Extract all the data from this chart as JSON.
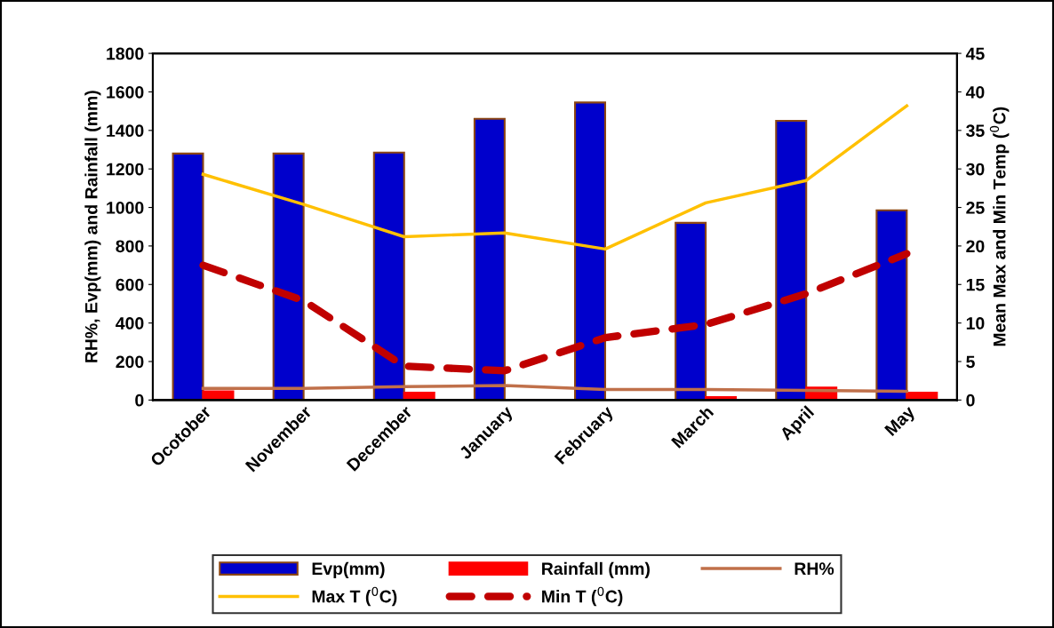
{
  "chart_data": {
    "type": "bar",
    "categories": [
      "Ocotober",
      "November",
      "December",
      "January",
      "February",
      "March",
      "April",
      "May"
    ],
    "ylabel": "RH%, Evp(mm) and Rainfall (mm)",
    "y2label": "Mean Max and Min Temp ($^{0}$C)",
    "ylim": [
      0,
      1800
    ],
    "yticks": [
      0,
      200,
      400,
      600,
      800,
      1000,
      1200,
      1400,
      1600,
      1800
    ],
    "y2lim": [
      0,
      45
    ],
    "y2ticks": [
      0,
      5,
      10,
      15,
      20,
      25,
      30,
      35,
      40,
      45
    ],
    "grid": false,
    "legend": "bottom",
    "series": [
      {
        "name": "Evp(mm)",
        "color": "#0000cc",
        "values": [
          1280,
          1280,
          1285,
          1460,
          1545,
          920,
          1450,
          985
        ]
      },
      {
        "name": "Rainfall (mm)",
        "color": "#ff0000",
        "values": [
          45,
          0,
          38,
          0,
          0,
          15,
          65,
          38
        ]
      },
      {
        "name": "RH%",
        "type": "line",
        "color": "#c0704a",
        "line_style": "solid",
        "values": [
          60,
          60,
          70,
          75,
          55,
          55,
          50,
          45
        ]
      },
      {
        "name": "Max T ($^{0}$C)",
        "type": "line",
        "axis": "y2",
        "color": "#ffc000",
        "line_style": "solid",
        "values": [
          29.3,
          25.4,
          21.2,
          21.7,
          19.6,
          25.6,
          28.5,
          38.2
        ]
      },
      {
        "name": "Min T ($^{0}$C)",
        "type": "line",
        "axis": "y2",
        "color": "#c00000",
        "line_style": "dashed",
        "values": [
          17.5,
          12.9,
          4.4,
          3.8,
          8.1,
          9.8,
          13.8,
          19.0
        ]
      }
    ]
  }
}
